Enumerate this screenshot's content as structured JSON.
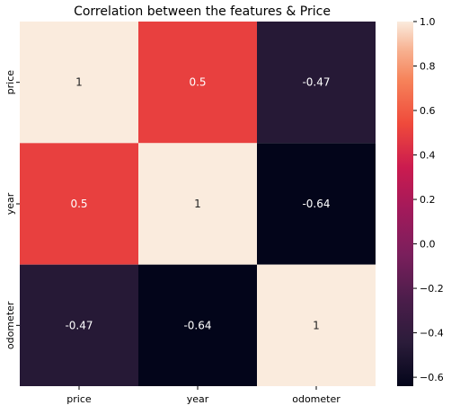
{
  "chart_data": {
    "type": "heatmap",
    "title": "Correlation between the features & Price",
    "x_labels": [
      "price",
      "year",
      "odometer"
    ],
    "y_labels": [
      "price",
      "year",
      "odometer"
    ],
    "matrix": [
      [
        1,
        0.5,
        -0.47
      ],
      [
        0.5,
        1,
        -0.64
      ],
      [
        -0.47,
        -0.64,
        1
      ]
    ],
    "cell_labels": [
      [
        "1",
        "0.5",
        "-0.47"
      ],
      [
        "0.5",
        "1",
        "-0.64"
      ],
      [
        "-0.47",
        "-0.64",
        "1"
      ]
    ],
    "color_scale": {
      "name": "rocket",
      "vmin": -0.64,
      "vmax": 1.0,
      "ticks": [
        1.0,
        0.8,
        0.6,
        0.4,
        0.2,
        0.0,
        -0.2,
        -0.4,
        -0.6
      ],
      "tick_labels": [
        "1.0",
        "0.8",
        "0.6",
        "0.4",
        "0.2",
        "0.0",
        "−0.2",
        "−0.4",
        "−0.6"
      ]
    }
  }
}
